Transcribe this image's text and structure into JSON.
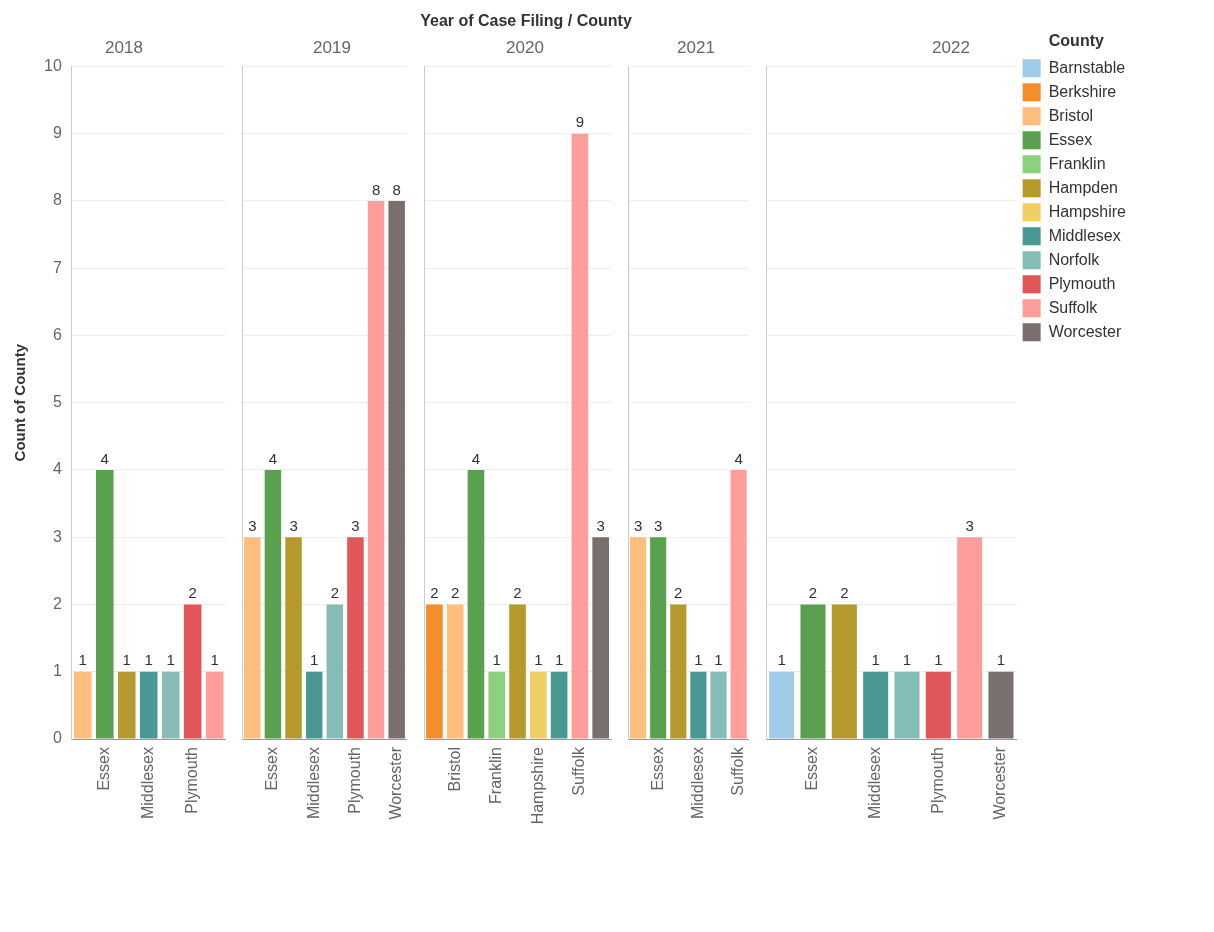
{
  "chart_data": [
    {
      "type": "bar",
      "title": "2018",
      "ylabel": "Count of County",
      "categories": [
        null,
        "Essex",
        null,
        "Middlesex",
        null,
        "Plymouth",
        null
      ],
      "ylim": [
        0,
        10
      ],
      "yticks": [
        0,
        1,
        2,
        3,
        4,
        5,
        6,
        7,
        8,
        9,
        10
      ],
      "grid": "y",
      "legend": false,
      "data_labels": true,
      "series": [
        {
          "color": "#ffbe7d",
          "values": [
            1,
            null,
            null,
            null,
            null,
            null,
            null
          ]
        },
        {
          "color": "#59a14f",
          "values": [
            null,
            4,
            null,
            null,
            null,
            null,
            null
          ]
        },
        {
          "color": "#b6992d",
          "values": [
            null,
            null,
            1,
            null,
            null,
            null,
            null
          ]
        },
        {
          "color": "#499894",
          "values": [
            null,
            null,
            null,
            1,
            null,
            null,
            null
          ]
        },
        {
          "color": "#86bcb6",
          "values": [
            null,
            null,
            null,
            null,
            1,
            null,
            null
          ]
        },
        {
          "color": "#e15759",
          "values": [
            null,
            null,
            null,
            null,
            null,
            2,
            null
          ]
        },
        {
          "color": "#ff9d9a",
          "values": [
            null,
            null,
            null,
            null,
            null,
            null,
            1
          ]
        }
      ]
    },
    {
      "type": "bar",
      "title": "2019",
      "categories": [
        null,
        "Essex",
        null,
        "Middlesex",
        null,
        "Plymouth",
        null,
        "Worcester"
      ],
      "ylim": [
        0,
        10
      ],
      "yticks": [
        0,
        1,
        2,
        3,
        4,
        5,
        6,
        7,
        8,
        9,
        10
      ],
      "tick_labels": "x",
      "grid": "y",
      "legend": false,
      "data_labels": true,
      "series": [
        {
          "color": "#ffbe7d",
          "values": [
            3,
            null,
            null,
            null,
            null,
            null,
            null,
            null
          ]
        },
        {
          "color": "#59a14f",
          "values": [
            null,
            4,
            null,
            null,
            null,
            null,
            null,
            null
          ]
        },
        {
          "color": "#b6992d",
          "values": [
            null,
            null,
            3,
            null,
            null,
            null,
            null,
            null
          ]
        },
        {
          "color": "#499894",
          "values": [
            null,
            null,
            null,
            1,
            null,
            null,
            null,
            null
          ]
        },
        {
          "color": "#86bcb6",
          "values": [
            null,
            null,
            null,
            null,
            2,
            null,
            null,
            null
          ]
        },
        {
          "color": "#e15759",
          "values": [
            null,
            null,
            null,
            null,
            null,
            3,
            null,
            null
          ]
        },
        {
          "color": "#ff9d9a",
          "values": [
            null,
            null,
            null,
            null,
            null,
            null,
            8,
            null
          ]
        },
        {
          "color": "#79706e",
          "values": [
            null,
            null,
            null,
            null,
            null,
            null,
            null,
            8
          ]
        }
      ]
    },
    {
      "type": "bar",
      "title": "2020",
      "xlabel": "Year of Case Filing / County",
      "categories": [
        null,
        "Bristol",
        null,
        "Franklin",
        null,
        "Hampshire",
        null,
        "Suffolk",
        null
      ],
      "ylim": [
        0,
        10
      ],
      "yticks": [
        0,
        1,
        2,
        3,
        4,
        5,
        6,
        7,
        8,
        9,
        10
      ],
      "tick_labels": "x",
      "grid": "y",
      "legend": false,
      "data_labels": true,
      "series": [
        {
          "color": "#f28e2b",
          "values": [
            2,
            null,
            null,
            null,
            null,
            null,
            null,
            null,
            null
          ]
        },
        {
          "color": "#ffbe7d",
          "values": [
            null,
            2,
            null,
            null,
            null,
            null,
            null,
            null,
            null
          ]
        },
        {
          "color": "#59a14f",
          "values": [
            null,
            null,
            4,
            null,
            null,
            null,
            null,
            null,
            null
          ]
        },
        {
          "color": "#8cd17d",
          "values": [
            null,
            null,
            null,
            1,
            null,
            null,
            null,
            null,
            null
          ]
        },
        {
          "color": "#b6992d",
          "values": [
            null,
            null,
            null,
            null,
            2,
            null,
            null,
            null,
            null
          ]
        },
        {
          "color": "#f1ce63",
          "values": [
            null,
            null,
            null,
            null,
            null,
            1,
            null,
            null,
            null
          ]
        },
        {
          "color": "#499894",
          "values": [
            null,
            null,
            null,
            null,
            null,
            null,
            1,
            null,
            null
          ]
        },
        {
          "color": "#ff9d9a",
          "values": [
            null,
            null,
            null,
            null,
            null,
            null,
            null,
            9,
            null
          ]
        },
        {
          "color": "#79706e",
          "values": [
            null,
            null,
            null,
            null,
            null,
            null,
            null,
            null,
            3
          ]
        }
      ]
    },
    {
      "type": "bar",
      "title": "2021",
      "categories": [
        null,
        "Essex",
        null,
        "Middlesex",
        null,
        "Suffolk"
      ],
      "ylim": [
        0,
        10
      ],
      "yticks": [
        0,
        1,
        2,
        3,
        4,
        5,
        6,
        7,
        8,
        9,
        10
      ],
      "tick_labels": "x",
      "grid": "y",
      "legend": false,
      "data_labels": true,
      "series": [
        {
          "color": "#ffbe7d",
          "values": [
            3,
            null,
            null,
            null,
            null,
            null
          ]
        },
        {
          "color": "#59a14f",
          "values": [
            null,
            3,
            null,
            null,
            null,
            null
          ]
        },
        {
          "color": "#b6992d",
          "values": [
            null,
            null,
            2,
            null,
            null,
            null
          ]
        },
        {
          "color": "#499894",
          "values": [
            null,
            null,
            null,
            1,
            null,
            null
          ]
        },
        {
          "color": "#86bcb6",
          "values": [
            null,
            null,
            null,
            null,
            1,
            null
          ]
        },
        {
          "color": "#ff9d9a",
          "values": [
            null,
            null,
            null,
            null,
            null,
            4
          ]
        }
      ]
    },
    {
      "type": "bar",
      "title": "2022",
      "categories": [
        null,
        "Essex",
        null,
        "Middlesex",
        null,
        "Plymouth",
        null,
        "Worcester"
      ],
      "ylim": [
        0,
        10
      ],
      "yticks": [
        0,
        1,
        2,
        3,
        4,
        5,
        6,
        7,
        8,
        9,
        10
      ],
      "tick_labels": "x",
      "grid": "y",
      "legend": "right",
      "legend_title": "County",
      "data_labels": true,
      "series": [
        {
          "name": "Barnstable",
          "color": "#a0cbe8",
          "values": [
            1,
            null,
            null,
            null,
            null,
            null,
            null,
            null
          ]
        },
        {
          "name": "Berkshire",
          "color": "#f28e2b",
          "values": [
            null,
            null,
            null,
            null,
            null,
            null,
            null,
            null
          ]
        },
        {
          "name": "Bristol",
          "color": "#ffbe7d",
          "values": [
            null,
            null,
            null,
            null,
            null,
            null,
            null,
            null
          ]
        },
        {
          "name": "Essex",
          "color": "#59a14f",
          "values": [
            null,
            2,
            null,
            null,
            null,
            null,
            null,
            null
          ]
        },
        {
          "name": "Franklin",
          "color": "#8cd17d",
          "values": [
            null,
            null,
            null,
            null,
            null,
            null,
            null,
            null
          ]
        },
        {
          "name": "Hampden",
          "color": "#b6992d",
          "values": [
            null,
            null,
            2,
            null,
            null,
            null,
            null,
            null
          ]
        },
        {
          "name": "Hampshire",
          "color": "#f1ce63",
          "values": [
            null,
            null,
            null,
            null,
            null,
            null,
            null,
            null
          ]
        },
        {
          "name": "Middlesex",
          "color": "#499894",
          "values": [
            null,
            null,
            null,
            1,
            null,
            null,
            null,
            null
          ]
        },
        {
          "name": "Norfolk",
          "color": "#86bcb6",
          "values": [
            null,
            null,
            null,
            null,
            1,
            null,
            null,
            null
          ]
        },
        {
          "name": "Plymouth",
          "color": "#e15759",
          "values": [
            null,
            null,
            null,
            null,
            null,
            1,
            null,
            null
          ]
        },
        {
          "name": "Suffolk",
          "color": "#ff9d9a",
          "values": [
            null,
            null,
            null,
            null,
            null,
            null,
            3,
            null
          ]
        },
        {
          "name": "Worcester",
          "color": "#79706e",
          "values": [
            null,
            null,
            null,
            null,
            null,
            null,
            null,
            1
          ]
        }
      ]
    }
  ]
}
